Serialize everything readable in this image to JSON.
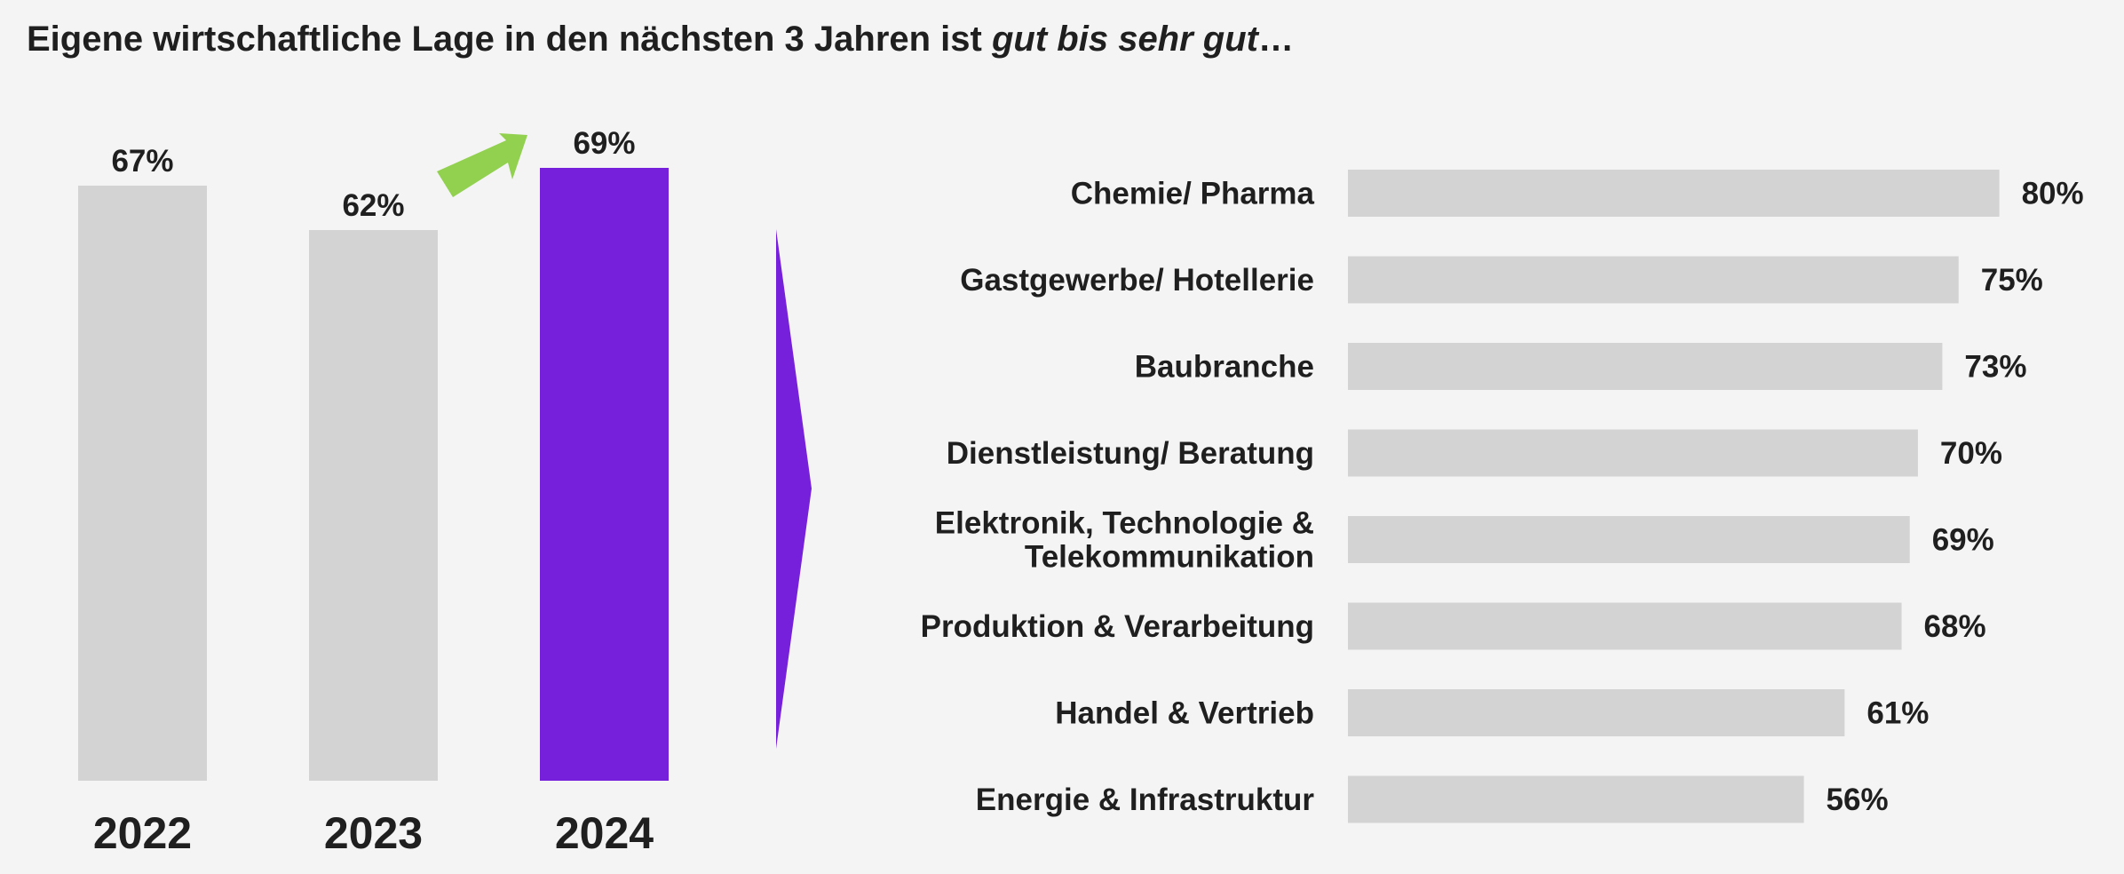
{
  "title": {
    "main": "Eigene wirtschaftliche Lage in den nächsten 3 Jahren ist ",
    "emphasis": "gut bis sehr gut",
    "suffix": "…"
  },
  "colors": {
    "bar": "#d3d3d3",
    "highlight": "#7620dc",
    "arrow": "#92d050",
    "text": "#1f1f1f"
  },
  "chart_data": [
    {
      "type": "bar",
      "orientation": "vertical",
      "categories": [
        "2022",
        "2023",
        "2024"
      ],
      "values": [
        67,
        62,
        69
      ],
      "value_labels": [
        "67%",
        "62%",
        "69%"
      ],
      "highlight_index": 2,
      "unit": "%",
      "ylim": [
        0,
        100
      ],
      "grid": false
    },
    {
      "type": "bar",
      "orientation": "horizontal",
      "categories": [
        "Chemie/ Pharma",
        "Gastgewerbe/ Hotellerie",
        "Baubranche",
        "Dienstleistung/ Beratung",
        "Elektronik, Technologie & Telekommunikation",
        "Produktion & Verarbeitung",
        "Handel & Vertrieb",
        "Energie & Infrastruktur"
      ],
      "category_lines": [
        [
          "Chemie/ Pharma"
        ],
        [
          "Gastgewerbe/ Hotellerie"
        ],
        [
          "Baubranche"
        ],
        [
          "Dienstleistung/ Beratung"
        ],
        [
          "Elektronik, Technologie &",
          "Telekommunikation"
        ],
        [
          "Produktion & Verarbeitung"
        ],
        [
          "Handel & Vertrieb"
        ],
        [
          "Energie & Infrastruktur"
        ]
      ],
      "values": [
        80,
        75,
        73,
        70,
        69,
        68,
        61,
        56
      ],
      "value_labels": [
        "80%",
        "75%",
        "73%",
        "70%",
        "69%",
        "68%",
        "61%",
        "56%"
      ],
      "unit": "%",
      "xlim": [
        0,
        100
      ],
      "grid": false
    }
  ]
}
